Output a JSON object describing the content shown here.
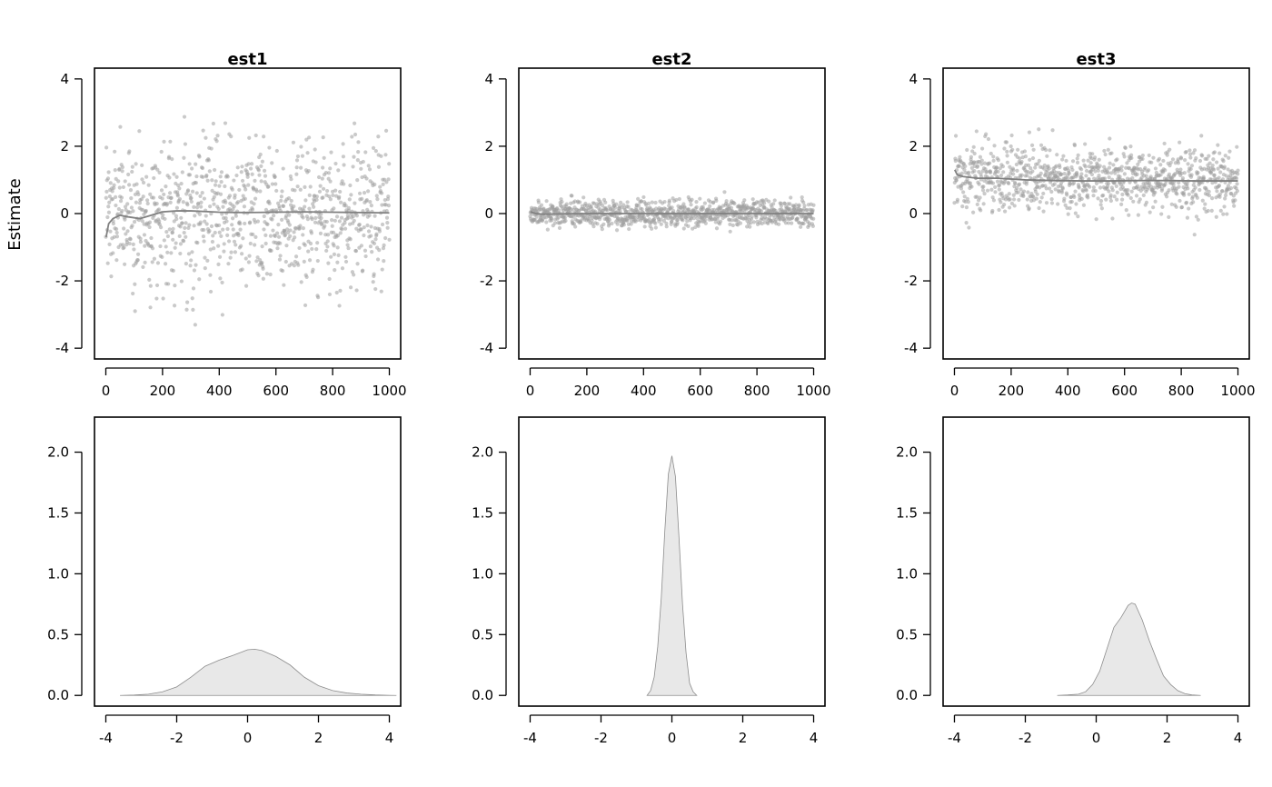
{
  "figure": {
    "ylabel": "Estimate"
  },
  "colors": {
    "points": "#9e9e9e",
    "trace_line": "#808080",
    "density_fill": "#e8e8e8",
    "density_line": "#8c8c8c",
    "axis": "#000000"
  },
  "chart_data": [
    {
      "type": "scatter",
      "title": "est1",
      "ylabel": "Estimate",
      "xlim": [
        0,
        1000
      ],
      "ylim": [
        -4,
        4
      ],
      "xticks": [
        "0",
        "200",
        "400",
        "600",
        "800",
        "1000"
      ],
      "yticks": [
        "-4",
        "-2",
        "0",
        "2",
        "4"
      ],
      "n_points": 1000,
      "mean": 0.0,
      "sd": 1.05,
      "running_mean": [
        [
          1,
          -0.7
        ],
        [
          10,
          -0.3
        ],
        [
          25,
          -0.15
        ],
        [
          50,
          -0.05
        ],
        [
          80,
          -0.1
        ],
        [
          120,
          -0.15
        ],
        [
          160,
          -0.05
        ],
        [
          200,
          0.05
        ],
        [
          250,
          0.08
        ],
        [
          300,
          0.08
        ],
        [
          350,
          0.06
        ],
        [
          400,
          0.04
        ],
        [
          500,
          0.03
        ],
        [
          600,
          0.04
        ],
        [
          700,
          0.05
        ],
        [
          800,
          0.04
        ],
        [
          900,
          0.03
        ],
        [
          1000,
          0.02
        ]
      ]
    },
    {
      "type": "scatter",
      "title": "est2",
      "xlim": [
        0,
        1000
      ],
      "ylim": [
        -4,
        4
      ],
      "xticks": [
        "0",
        "200",
        "400",
        "600",
        "800",
        "1000"
      ],
      "yticks": [
        "-4",
        "-2",
        "0",
        "2",
        "4"
      ],
      "n_points": 1000,
      "mean": 0.0,
      "sd": 0.2,
      "running_mean": [
        [
          1,
          0.05
        ],
        [
          20,
          0.0
        ],
        [
          50,
          -0.02
        ],
        [
          100,
          -0.01
        ],
        [
          200,
          0.0
        ],
        [
          400,
          0.0
        ],
        [
          600,
          0.0
        ],
        [
          800,
          0.0
        ],
        [
          1000,
          0.0
        ]
      ]
    },
    {
      "type": "scatter",
      "title": "est3",
      "xlim": [
        0,
        1000
      ],
      "ylim": [
        -4,
        4
      ],
      "xticks": [
        "0",
        "200",
        "400",
        "600",
        "800",
        "1000"
      ],
      "yticks": [
        "-4",
        "-2",
        "0",
        "2",
        "4"
      ],
      "n_points": 1000,
      "mean": 1.0,
      "sd": 0.5,
      "running_mean": [
        [
          1,
          1.3
        ],
        [
          10,
          1.15
        ],
        [
          30,
          1.1
        ],
        [
          80,
          1.05
        ],
        [
          150,
          1.05
        ],
        [
          250,
          1.0
        ],
        [
          350,
          0.98
        ],
        [
          450,
          0.97
        ],
        [
          550,
          0.97
        ],
        [
          650,
          0.98
        ],
        [
          750,
          0.98
        ],
        [
          850,
          0.97
        ],
        [
          1000,
          0.97
        ]
      ]
    },
    {
      "type": "area",
      "xlim": [
        -4,
        4
      ],
      "ylim": [
        0,
        2.2
      ],
      "xticks": [
        "-4",
        "-2",
        "0",
        "2",
        "4"
      ],
      "yticks": [
        "0.0",
        "0.5",
        "1.0",
        "1.5",
        "2.0"
      ],
      "x": [
        -3.6,
        -3.2,
        -2.8,
        -2.4,
        -2.0,
        -1.6,
        -1.2,
        -0.8,
        -0.4,
        0.0,
        0.2,
        0.4,
        0.8,
        1.2,
        1.6,
        2.0,
        2.4,
        2.8,
        3.2,
        3.6,
        4.0,
        4.2
      ],
      "y": [
        0.0,
        0.003,
        0.01,
        0.03,
        0.07,
        0.15,
        0.24,
        0.29,
        0.33,
        0.375,
        0.38,
        0.37,
        0.32,
        0.25,
        0.15,
        0.08,
        0.04,
        0.02,
        0.01,
        0.004,
        0.001,
        0.0
      ]
    },
    {
      "type": "area",
      "xlim": [
        -4,
        4
      ],
      "ylim": [
        0,
        2.2
      ],
      "xticks": [
        "-4",
        "-2",
        "0",
        "2",
        "4"
      ],
      "yticks": [
        "0.0",
        "0.5",
        "1.0",
        "1.5",
        "2.0"
      ],
      "x": [
        -0.7,
        -0.6,
        -0.5,
        -0.4,
        -0.3,
        -0.2,
        -0.1,
        0.0,
        0.1,
        0.2,
        0.3,
        0.4,
        0.5,
        0.6,
        0.7
      ],
      "y": [
        0.0,
        0.04,
        0.15,
        0.4,
        0.8,
        1.35,
        1.82,
        1.97,
        1.8,
        1.3,
        0.75,
        0.35,
        0.1,
        0.03,
        0.0
      ]
    },
    {
      "type": "area",
      "xlim": [
        -4,
        4
      ],
      "ylim": [
        0,
        2.2
      ],
      "xticks": [
        "-4",
        "-2",
        "0",
        "2",
        "4"
      ],
      "yticks": [
        "0.0",
        "0.5",
        "1.0",
        "1.5",
        "2.0"
      ],
      "x": [
        -1.1,
        -0.8,
        -0.5,
        -0.3,
        -0.1,
        0.1,
        0.3,
        0.5,
        0.7,
        0.9,
        1.0,
        1.1,
        1.3,
        1.5,
        1.7,
        1.9,
        2.1,
        2.3,
        2.5,
        2.7,
        2.95
      ],
      "y": [
        0.0,
        0.004,
        0.01,
        0.03,
        0.09,
        0.2,
        0.38,
        0.56,
        0.64,
        0.74,
        0.76,
        0.75,
        0.62,
        0.45,
        0.3,
        0.16,
        0.09,
        0.04,
        0.015,
        0.004,
        0.0
      ]
    }
  ]
}
